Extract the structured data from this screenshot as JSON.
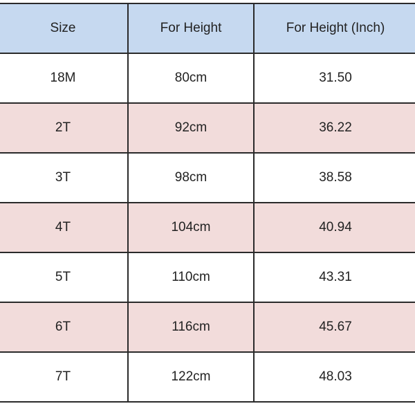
{
  "table": {
    "headers": [
      "Size",
      "For Height",
      "For Height (Inch)"
    ],
    "rows": [
      {
        "size": "18M",
        "cm": "80cm",
        "inch": "31.50"
      },
      {
        "size": "2T",
        "cm": "92cm",
        "inch": "36.22"
      },
      {
        "size": "3T",
        "cm": "98cm",
        "inch": "38.58"
      },
      {
        "size": "4T",
        "cm": "104cm",
        "inch": "40.94"
      },
      {
        "size": "5T",
        "cm": "110cm",
        "inch": "43.31"
      },
      {
        "size": "6T",
        "cm": "116cm",
        "inch": "45.67"
      },
      {
        "size": "7T",
        "cm": "122cm",
        "inch": "48.03"
      }
    ]
  },
  "colors": {
    "header": "#c6d9f0",
    "alt_row": "#f2dcdb",
    "row": "#ffffff"
  }
}
